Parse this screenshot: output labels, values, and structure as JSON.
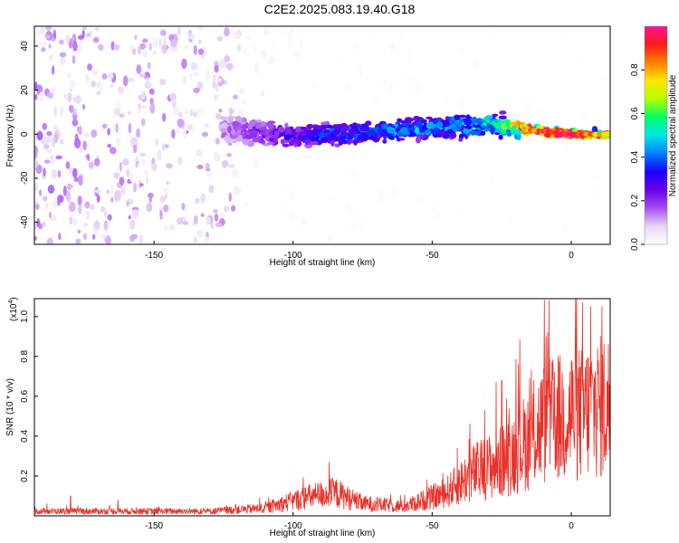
{
  "title": "C2E2.2025.083.19.40.G18",
  "chart_data": [
    {
      "type": "heatmap",
      "name": "spectrogram",
      "xlabel": "Height of straight line (km)",
      "ylabel": "Frequency (Hz)",
      "xlim": [
        -193,
        14
      ],
      "ylim": [
        -50,
        49
      ],
      "xticks": [
        -150,
        -100,
        -50,
        0
      ],
      "yticks": [
        -40,
        -20,
        0,
        20,
        40
      ],
      "colorbar": {
        "label": "Normalized spectral amplitude",
        "range": [
          0,
          1
        ],
        "ticks": [
          "0.0",
          "0.2",
          "0.4",
          "0.6",
          "0.8"
        ],
        "colors": [
          "#ffffff",
          "#e6d6f2",
          "#a64cf2",
          "#6a00e6",
          "#1a00ff",
          "#0080ff",
          "#00e6e6",
          "#00ff66",
          "#b3ff00",
          "#ffe600",
          "#ff7f00",
          "#ff1a1a",
          "#ff1493"
        ]
      },
      "trace": {
        "center_freq_hz": [
          [
            -125,
            2
          ],
          [
            -100,
            -1
          ],
          [
            -60,
            2
          ],
          [
            -30,
            5
          ],
          [
            -15,
            2
          ],
          [
            0,
            0
          ],
          [
            14,
            0
          ]
        ],
        "halfwidth_hz": [
          [
            -125,
            8
          ],
          [
            -100,
            6
          ],
          [
            -60,
            5
          ],
          [
            -30,
            6
          ],
          [
            -20,
            5
          ],
          [
            -15,
            2
          ],
          [
            14,
            2
          ]
        ],
        "amplitude": [
          [
            -125,
            0.12
          ],
          [
            -110,
            0.2
          ],
          [
            -90,
            0.3
          ],
          [
            -50,
            0.38
          ],
          [
            -25,
            0.45
          ],
          [
            -15,
            0.85
          ],
          [
            0,
            0.97
          ],
          [
            14,
            0.72
          ]
        ]
      },
      "noise_floor_amplitude": [
        [
          -193,
          0.06
        ],
        [
          -120,
          0.05
        ],
        [
          -119,
          0.015
        ],
        [
          -100,
          0.01
        ],
        [
          -50,
          0.004
        ],
        [
          14,
          0.004
        ]
      ]
    },
    {
      "type": "line",
      "name": "snr",
      "xlabel": "Height of straight line (km)",
      "ylabel": "SNR (10 * v/v)",
      "scale_label": "(x10",
      "scale_exponent": "4",
      "xlim": [
        -193,
        14
      ],
      "ylim": [
        0,
        1.09
      ],
      "xticks": [
        -150,
        -100,
        -50,
        0
      ],
      "yticks": [
        0.2,
        0.4,
        0.6,
        0.8,
        1.0
      ],
      "ytick_labels": [
        "0.2",
        "0.4",
        "0.6",
        "0.8",
        "1.0"
      ],
      "color": "#e8322a",
      "envelope": [
        [
          -193,
          0.03
        ],
        [
          -130,
          0.03
        ],
        [
          -110,
          0.05
        ],
        [
          -95,
          0.12
        ],
        [
          -85,
          0.15
        ],
        [
          -75,
          0.08
        ],
        [
          -60,
          0.06
        ],
        [
          -45,
          0.15
        ],
        [
          -35,
          0.28
        ],
        [
          -25,
          0.35
        ],
        [
          -20,
          0.42
        ],
        [
          -15,
          0.5
        ],
        [
          -10,
          0.6
        ],
        [
          0,
          0.65
        ],
        [
          14,
          0.72
        ]
      ],
      "spikes": [
        [
          -180,
          0.1
        ],
        [
          -163,
          0.08
        ],
        [
          -112,
          0.09
        ],
        [
          -87,
          0.27
        ],
        [
          -41,
          0.34
        ],
        [
          -27,
          0.67
        ],
        [
          -25,
          0.68
        ],
        [
          -19,
          0.76
        ],
        [
          -9,
          0.9
        ],
        [
          -8,
          1.08
        ],
        [
          0,
          0.78
        ],
        [
          4,
          1.07
        ],
        [
          7,
          1.05
        ],
        [
          11,
          1.05
        ]
      ]
    }
  ]
}
